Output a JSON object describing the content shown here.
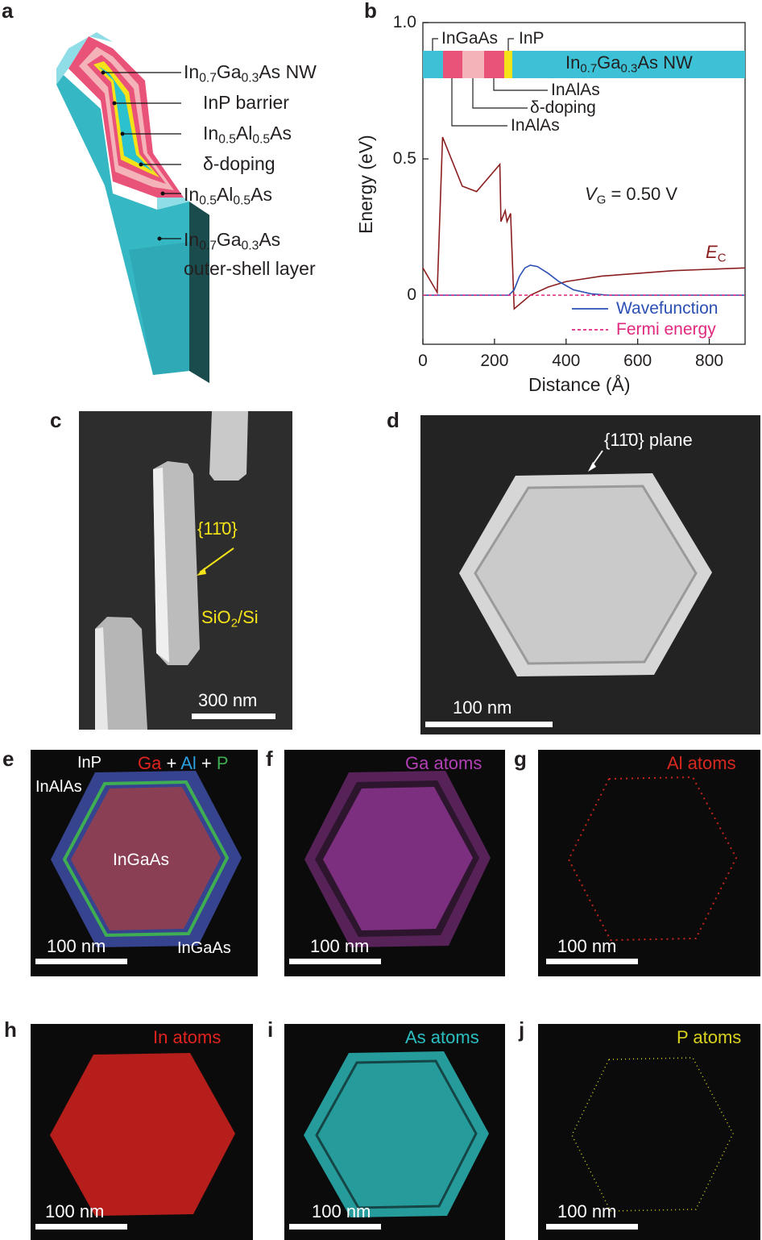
{
  "panels": {
    "a": {
      "label": "a",
      "callouts": [
        {
          "main": "In",
          "s1": "0.7",
          "m2": "Ga",
          "s2": "0.3",
          "m3": "As NW"
        },
        {
          "text": "InP barrier"
        },
        {
          "main": "In",
          "s1": "0.5",
          "m2": "Al",
          "s2": "0.5",
          "m3": "As"
        },
        {
          "text": "δ-doping"
        },
        {
          "main": "In",
          "s1": "0.5",
          "m2": "Al",
          "s2": "0.5",
          "m3": "As"
        },
        {
          "main": "In",
          "s1": "0.7",
          "m2": "Ga",
          "s2": "0.3",
          "m3": "As",
          "line2": "outer-shell layer"
        }
      ]
    },
    "b": {
      "label": "b"
    },
    "c": {
      "label": "c",
      "facet": "{11̄0}",
      "substrate_main": "SiO",
      "substrate_sub": "2",
      "substrate_tail": "/Si",
      "scale": "300 nm"
    },
    "d": {
      "label": "d",
      "annotation": "{11̄0} plane",
      "scale": "100 nm"
    },
    "e": {
      "label": "e",
      "title_ga": "Ga",
      "title_plus1": " + ",
      "title_al": "Al",
      "title_plus2": " + ",
      "title_p": "P",
      "inp": "InP",
      "inalas": "InAlAs",
      "ingaas_core": "InGaAs",
      "ingaas_shell": "InGaAs",
      "scale": "100 nm"
    },
    "f": {
      "label": "f",
      "title": "Ga atoms",
      "scale": "100 nm"
    },
    "g": {
      "label": "g",
      "title": "Al atoms",
      "scale": "100 nm"
    },
    "h": {
      "label": "h",
      "title": "In atoms",
      "scale": "100 nm"
    },
    "i": {
      "label": "i",
      "title": "As atoms",
      "scale": "100 nm"
    },
    "j": {
      "label": "j",
      "title": "P atoms",
      "scale": "100 nm"
    }
  },
  "colors": {
    "nw_cyan": "#3cc1d6",
    "pink": "#e9537a",
    "lightpink": "#f4b3b8",
    "yellow": "#f5e31a",
    "ec_line": "#8b1f1f",
    "wave_line": "#2b4fb3",
    "fermi_line": "#e0287e",
    "ga_map": "#b23fb5",
    "al_map": "#d8281f",
    "in_map": "#e0231e",
    "as_map": "#2cbfc1",
    "p_map": "#d9d21e"
  },
  "chart_data": {
    "type": "line",
    "xlabel": "Distance (Å)",
    "ylabel": "Energy (eV)",
    "xlim": [
      0,
      900
    ],
    "ylim": [
      -0.18,
      1.0
    ],
    "xticks": [
      "0",
      "200",
      "400",
      "600",
      "800"
    ],
    "yticks": [
      "1.0",
      "0.5",
      "0"
    ],
    "annotation_vg_var": "V",
    "annotation_vg_sub": "G",
    "annotation_vg_val": " = 0.50 V",
    "ec_label_var": "E",
    "ec_label_sub": "C",
    "layer_labels": {
      "ingaas": "InGaAs",
      "inp": "InP",
      "nw_main": "In",
      "nw_s1": "0.7",
      "nw_m2": "Ga",
      "nw_s2": "0.3",
      "nw_m3": "As NW",
      "inalas_top": "InAlAs",
      "doping": "δ-doping",
      "inalas_bottom": "InAlAs"
    },
    "series": [
      {
        "name": "E_C",
        "x": [
          0,
          40,
          55,
          110,
          150,
          215,
          218,
          230,
          235,
          245,
          255,
          300,
          350,
          400,
          500,
          600,
          700,
          800,
          900
        ],
        "y": [
          0.1,
          0.01,
          0.58,
          0.4,
          0.38,
          0.48,
          0.27,
          0.31,
          0.27,
          0.3,
          -0.05,
          0.0,
          0.03,
          0.05,
          0.07,
          0.08,
          0.09,
          0.095,
          0.1
        ]
      },
      {
        "name": "Wavefunction",
        "x": [
          0,
          240,
          255,
          270,
          285,
          300,
          320,
          350,
          380,
          420,
          470,
          520,
          900
        ],
        "y": [
          0,
          0,
          0.02,
          0.07,
          0.1,
          0.11,
          0.105,
          0.08,
          0.05,
          0.02,
          0.005,
          0,
          0
        ]
      },
      {
        "name": "Fermi energy",
        "x": [
          0,
          900
        ],
        "y": [
          0,
          0
        ]
      }
    ],
    "legend": [
      "Wavefunction",
      "Fermi energy"
    ],
    "legend_position": "bottom-right"
  }
}
